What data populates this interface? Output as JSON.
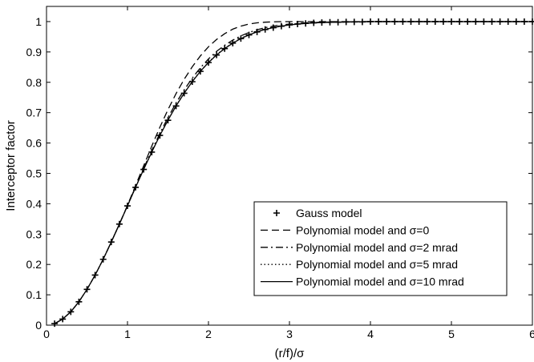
{
  "chart_data": {
    "type": "line",
    "title": "",
    "xlabel": "(r/f)/σ",
    "ylabel": "Interceptor factor",
    "xlim": [
      0,
      6
    ],
    "ylim": [
      0,
      1.05
    ],
    "xticks": [
      0,
      1,
      2,
      3,
      4,
      5,
      6
    ],
    "yticks": [
      0,
      0.1,
      0.2,
      0.3,
      0.4,
      0.5,
      0.6,
      0.7,
      0.8,
      0.9,
      1
    ],
    "grid": false,
    "legend_position": "lower-right",
    "series": [
      {
        "name": "Gauss model",
        "style": "plus-markers",
        "x": [
          0.1,
          0.2,
          0.3,
          0.4,
          0.5,
          0.6,
          0.7,
          0.8,
          0.9,
          1.0,
          1.1,
          1.2,
          1.3,
          1.4,
          1.5,
          1.6,
          1.7,
          1.8,
          1.9,
          2.0,
          2.1,
          2.2,
          2.3,
          2.4,
          2.5,
          2.6,
          2.7,
          2.8,
          2.9,
          3.0,
          3.1,
          3.2,
          3.3,
          3.4,
          3.5,
          3.6,
          3.7,
          3.8,
          3.9,
          4.0,
          4.1,
          4.2,
          4.3,
          4.4,
          4.5,
          4.6,
          4.7,
          4.8,
          4.9,
          5.0,
          5.1,
          5.2,
          5.3,
          5.4,
          5.5,
          5.6,
          5.7,
          5.8,
          5.9,
          6.0
        ],
        "y": [
          0.005,
          0.02,
          0.044,
          0.077,
          0.118,
          0.165,
          0.217,
          0.274,
          0.333,
          0.393,
          0.454,
          0.513,
          0.57,
          0.625,
          0.675,
          0.722,
          0.764,
          0.802,
          0.836,
          0.865,
          0.89,
          0.911,
          0.929,
          0.944,
          0.956,
          0.966,
          0.974,
          0.98,
          0.985,
          0.989,
          0.992,
          0.994,
          0.996,
          0.997,
          0.998,
          0.998,
          0.999,
          0.999,
          0.999,
          1.0,
          1.0,
          1.0,
          1.0,
          1.0,
          1.0,
          1.0,
          1.0,
          1.0,
          1.0,
          1.0,
          1.0,
          1.0,
          1.0,
          1.0,
          1.0,
          1.0,
          1.0,
          1.0,
          1.0,
          1.0
        ]
      },
      {
        "name": "Polynomial model and σ=0",
        "style": "dashed",
        "x": [
          0.1,
          0.2,
          0.3,
          0.4,
          0.5,
          0.6,
          0.7,
          0.8,
          0.9,
          1.0,
          1.1,
          1.2,
          1.3,
          1.4,
          1.5,
          1.6,
          1.7,
          1.8,
          1.9,
          2.0,
          2.1,
          2.2,
          2.3,
          2.4,
          2.5,
          2.6,
          2.7,
          2.8,
          2.9,
          3.0,
          3.1,
          3.2,
          3.3,
          3.4,
          3.5,
          3.6,
          3.7,
          3.8,
          3.9,
          4.0,
          4.5,
          5.0,
          5.5,
          6.0
        ],
        "y": [
          0.005,
          0.02,
          0.044,
          0.077,
          0.118,
          0.165,
          0.217,
          0.274,
          0.333,
          0.395,
          0.46,
          0.525,
          0.59,
          0.652,
          0.71,
          0.763,
          0.81,
          0.851,
          0.887,
          0.917,
          0.941,
          0.96,
          0.975,
          0.985,
          0.992,
          0.996,
          0.998,
          0.999,
          1.0,
          1.0,
          1.0,
          1.0,
          1.0,
          1.0,
          1.0,
          1.0,
          1.0,
          1.0,
          1.0,
          1.0,
          1.0,
          1.0,
          1.0,
          1.0
        ]
      },
      {
        "name": "Polynomial model and σ=2 mrad",
        "style": "dash-dot",
        "x": [
          0.1,
          0.2,
          0.3,
          0.4,
          0.5,
          0.6,
          0.7,
          0.8,
          0.9,
          1.0,
          1.1,
          1.2,
          1.3,
          1.4,
          1.5,
          1.6,
          1.7,
          1.8,
          1.9,
          2.0,
          2.1,
          2.2,
          2.3,
          2.4,
          2.5,
          2.6,
          2.7,
          2.8,
          2.9,
          3.0,
          3.1,
          3.2,
          3.3,
          3.4,
          3.5,
          3.6,
          3.7,
          3.8,
          3.9,
          4.0,
          4.2,
          4.4,
          4.6,
          4.8,
          5.0,
          5.2,
          5.4,
          5.6,
          5.8,
          6.0
        ],
        "y": [
          0.005,
          0.02,
          0.044,
          0.077,
          0.118,
          0.165,
          0.217,
          0.274,
          0.333,
          0.394,
          0.456,
          0.517,
          0.576,
          0.632,
          0.684,
          0.732,
          0.775,
          0.814,
          0.848,
          0.877,
          0.902,
          0.922,
          0.939,
          0.953,
          0.964,
          0.973,
          0.98,
          0.985,
          0.989,
          0.992,
          0.994,
          0.996,
          0.997,
          0.998,
          0.998,
          0.999,
          0.999,
          0.999,
          1.0,
          1.0,
          1.0,
          1.0,
          1.0,
          1.0,
          1.0,
          1.0,
          1.0,
          1.0,
          1.0,
          1.0
        ]
      },
      {
        "name": "Polynomial model and σ=5 mrad",
        "style": "dotted",
        "x": [
          0.1,
          0.2,
          0.3,
          0.4,
          0.5,
          0.6,
          0.7,
          0.8,
          0.9,
          1.0,
          1.1,
          1.2,
          1.3,
          1.4,
          1.5,
          1.6,
          1.7,
          1.8,
          1.9,
          2.0,
          2.1,
          2.2,
          2.3,
          2.4,
          2.5,
          2.6,
          2.7,
          2.8,
          2.9,
          3.0,
          3.2,
          3.4,
          3.6,
          3.8,
          4.0,
          4.2,
          4.4,
          4.6,
          4.8,
          5.0,
          5.2,
          5.4,
          5.6,
          5.8,
          6.0
        ],
        "y": [
          0.005,
          0.02,
          0.044,
          0.077,
          0.118,
          0.165,
          0.217,
          0.274,
          0.333,
          0.393,
          0.454,
          0.514,
          0.571,
          0.626,
          0.676,
          0.723,
          0.765,
          0.803,
          0.837,
          0.866,
          0.891,
          0.912,
          0.93,
          0.945,
          0.957,
          0.967,
          0.975,
          0.981,
          0.986,
          0.99,
          0.994,
          0.997,
          0.998,
          0.999,
          1.0,
          1.0,
          1.0,
          1.0,
          1.0,
          1.0,
          1.0,
          1.0,
          1.0,
          1.0,
          1.0
        ]
      },
      {
        "name": "Polynomial model and σ=10 mrad",
        "style": "solid",
        "x": [
          0.1,
          0.2,
          0.3,
          0.4,
          0.5,
          0.6,
          0.7,
          0.8,
          0.9,
          1.0,
          1.1,
          1.2,
          1.3,
          1.4,
          1.5,
          1.6,
          1.7,
          1.8,
          1.9,
          2.0,
          2.1,
          2.2,
          2.3,
          2.4,
          2.5,
          2.6,
          2.7,
          2.8,
          2.9,
          3.0,
          3.2,
          3.4,
          3.6,
          3.8,
          4.0,
          4.2,
          4.4,
          4.6,
          4.8,
          5.0,
          5.2,
          5.4,
          5.6,
          5.8,
          6.0
        ],
        "y": [
          0.005,
          0.02,
          0.044,
          0.077,
          0.118,
          0.165,
          0.217,
          0.274,
          0.333,
          0.393,
          0.454,
          0.513,
          0.57,
          0.625,
          0.675,
          0.722,
          0.764,
          0.802,
          0.836,
          0.865,
          0.89,
          0.911,
          0.929,
          0.944,
          0.956,
          0.966,
          0.974,
          0.98,
          0.985,
          0.989,
          0.994,
          0.997,
          0.998,
          0.999,
          1.0,
          1.0,
          1.0,
          1.0,
          1.0,
          1.0,
          1.0,
          1.0,
          1.0,
          1.0,
          1.0
        ]
      }
    ]
  }
}
